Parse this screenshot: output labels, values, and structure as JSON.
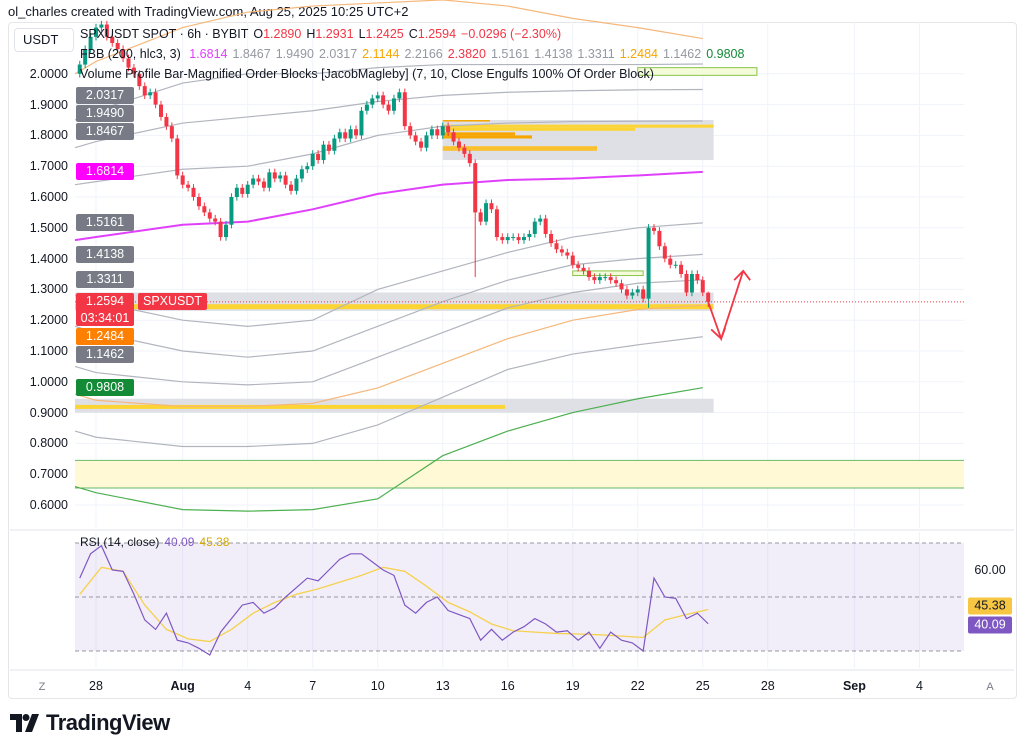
{
  "credit": "ol_charles created with TradingView.com, Aug 25, 2025 10:25 UTC+2",
  "currency_button": "USDT",
  "legend": {
    "symbol": "SPXUSDT SPOT · 6h · BYBIT",
    "o_label": "O",
    "o": "1.2890",
    "h_label": "H",
    "h": "1.2931",
    "l_label": "L",
    "l": "1.2425",
    "c_label": "C",
    "c": "1.2594",
    "change": "−0.0296 (−2.30%)",
    "fbb_name": "FBB (200, hlc3, 3)",
    "fbb_values": [
      {
        "v": "1.6814",
        "color": "#e040fb"
      },
      {
        "v": "1.8467",
        "color": "#9598a1"
      },
      {
        "v": "1.9490",
        "color": "#9598a1"
      },
      {
        "v": "2.0317",
        "color": "#9598a1"
      },
      {
        "v": "2.1144",
        "color": "#f7a600"
      },
      {
        "v": "2.2166",
        "color": "#9598a1"
      },
      {
        "v": "2.3820",
        "color": "#f23645"
      },
      {
        "v": "1.5161",
        "color": "#9598a1"
      },
      {
        "v": "1.4138",
        "color": "#9598a1"
      },
      {
        "v": "1.3311",
        "color": "#9598a1"
      },
      {
        "v": "1.2484",
        "color": "#f7a600"
      },
      {
        "v": "1.1462",
        "color": "#9598a1"
      },
      {
        "v": "0.9808",
        "color": "#138a36"
      }
    ],
    "vp_name": "Volume Profile Bar-Magnified Order Blocks [JacobMagleby] (7, 10, Close Engulfs 100% Of Order Block)"
  },
  "price_axis": {
    "ticks": [
      "2.0000",
      "1.9000",
      "1.8000",
      "1.7000",
      "1.6000",
      "1.5000",
      "1.4000",
      "1.3000",
      "1.2000",
      "1.1000",
      "1.0000",
      "0.9000",
      "0.8000",
      "0.7000",
      "0.6000"
    ],
    "badges": [
      {
        "v": "2.0317",
        "color": "#787b86"
      },
      {
        "v": "1.9490",
        "color": "#787b86"
      },
      {
        "v": "1.8467",
        "color": "#787b86"
      },
      {
        "v": "1.6814",
        "color": "#ff00ff"
      },
      {
        "v": "1.5161",
        "color": "#787b86"
      },
      {
        "v": "1.4138",
        "color": "#787b86"
      },
      {
        "v": "1.3311",
        "color": "#787b86"
      },
      {
        "v": "1.2484",
        "color": "#ff7f00"
      },
      {
        "v": "1.1462",
        "color": "#787b86"
      },
      {
        "v": "0.9808",
        "color": "#138a36"
      }
    ],
    "last_price": "1.2594",
    "countdown": "03:34:01",
    "symbol_tag": "SPXUSDT"
  },
  "time_axis": {
    "ticks": [
      {
        "label": "28",
        "date": "2025-07-28",
        "bold": false
      },
      {
        "label": "Aug",
        "date": "2025-08-01",
        "bold": true
      },
      {
        "label": "4",
        "date": "2025-08-04",
        "bold": false
      },
      {
        "label": "7",
        "date": "2025-08-07",
        "bold": false
      },
      {
        "label": "10",
        "date": "2025-08-10",
        "bold": false
      },
      {
        "label": "13",
        "date": "2025-08-13",
        "bold": false
      },
      {
        "label": "16",
        "date": "2025-08-16",
        "bold": false
      },
      {
        "label": "19",
        "date": "2025-08-19",
        "bold": false
      },
      {
        "label": "22",
        "date": "2025-08-22",
        "bold": false
      },
      {
        "label": "25",
        "date": "2025-08-25",
        "bold": false
      },
      {
        "label": "28",
        "date": "2025-08-28",
        "bold": false
      },
      {
        "label": "Sep",
        "date": "2025-09-01",
        "bold": true
      },
      {
        "label": "4",
        "date": "2025-09-04",
        "bold": false
      }
    ],
    "left_button": "Z",
    "right_button": "A"
  },
  "rsi": {
    "name": "RSI (14, close)",
    "value": "40.09",
    "ma_value": "45.38",
    "axis_tick": "60.00"
  },
  "brand": "TradingView",
  "colors": {
    "up": "#089981",
    "down": "#f23645",
    "basis": "#e040fb",
    "rsi": "#7e57c2",
    "rsi_ma": "#f5d14e",
    "arrow": "#f23645"
  },
  "chart_data": [
    {
      "type": "candlestick",
      "interval": "6h",
      "start": "2025-07-27T06:00",
      "ylim": [
        0.55,
        2.2
      ],
      "grid": true,
      "closes": [
        2.03,
        2.08,
        2.12,
        2.15,
        2.16,
        2.12,
        2.1,
        2.08,
        2.05,
        2.02,
        2.0,
        1.96,
        1.93,
        1.94,
        1.9,
        1.86,
        1.83,
        1.79,
        1.67,
        1.64,
        1.63,
        1.6,
        1.57,
        1.55,
        1.53,
        1.52,
        1.47,
        1.51,
        1.6,
        1.63,
        1.61,
        1.64,
        1.66,
        1.65,
        1.63,
        1.68,
        1.66,
        1.67,
        1.64,
        1.62,
        1.66,
        1.69,
        1.7,
        1.74,
        1.72,
        1.77,
        1.75,
        1.79,
        1.81,
        1.79,
        1.82,
        1.8,
        1.88,
        1.9,
        1.92,
        1.93,
        1.9,
        1.88,
        1.92,
        1.94,
        1.83,
        1.8,
        1.78,
        1.76,
        1.8,
        1.82,
        1.8,
        1.83,
        1.81,
        1.78,
        1.76,
        1.74,
        1.71,
        1.55,
        1.52,
        1.58,
        1.56,
        1.47,
        1.46,
        1.47,
        1.47,
        1.46,
        1.47,
        1.48,
        1.52,
        1.53,
        1.48,
        1.45,
        1.43,
        1.42,
        1.41,
        1.38,
        1.37,
        1.36,
        1.34,
        1.33,
        1.34,
        1.34,
        1.33,
        1.32,
        1.3,
        1.28,
        1.29,
        1.3,
        1.27,
        1.5,
        1.49,
        1.44,
        1.4,
        1.38,
        1.38,
        1.35,
        1.29,
        1.35,
        1.33,
        1.29,
        1.2594
      ],
      "last": {
        "open": 1.289,
        "high": 1.2931,
        "low": 1.2425,
        "close": 1.2594
      },
      "bands": {
        "dates": [
          "2025-07-27",
          "2025-07-28",
          "2025-08-01",
          "2025-08-04",
          "2025-08-07",
          "2025-08-10",
          "2025-08-13",
          "2025-08-16",
          "2025-08-19",
          "2025-08-22",
          "2025-08-25"
        ],
        "series": [
          {
            "name": "basis",
            "color": "#e040fb",
            "values": [
              1.46,
              1.47,
              1.51,
              1.52,
              1.56,
              1.61,
              1.64,
              1.655,
              1.66,
              1.67,
              1.6814
            ]
          },
          {
            "color": "#b2b5be",
            "values": [
              1.64,
              1.65,
              1.69,
              1.7,
              1.74,
              1.8,
              1.83,
              1.84,
              1.845,
              1.846,
              1.8467
            ]
          },
          {
            "color": "#b2b5be",
            "values": [
              1.76,
              1.78,
              1.84,
              1.86,
              1.88,
              1.91,
              1.93,
              1.94,
              1.945,
              1.948,
              1.949
            ]
          },
          {
            "color": "#b2b5be",
            "values": [
              1.85,
              1.88,
              1.97,
              2.0,
              2.0,
              2.02,
              2.03,
              2.03,
              2.03,
              2.03,
              2.0317
            ]
          },
          {
            "color": "#f5b77a",
            "values": [
              2.0,
              2.04,
              2.15,
              2.2,
              2.22,
              2.23,
              2.24,
              2.22,
              2.18,
              2.15,
              2.1144
            ]
          },
          {
            "color": "#b2b5be",
            "values": [
              1.28,
              1.26,
              1.2,
              1.18,
              1.2,
              1.3,
              1.36,
              1.42,
              1.47,
              1.5,
              1.5161
            ]
          },
          {
            "color": "#b2b5be",
            "values": [
              1.18,
              1.16,
              1.1,
              1.08,
              1.1,
              1.18,
              1.26,
              1.33,
              1.38,
              1.4,
              1.4138
            ]
          },
          {
            "color": "#b2b5be",
            "values": [
              1.05,
              1.03,
              1.0,
              0.99,
              1.0,
              1.08,
              1.16,
              1.24,
              1.29,
              1.32,
              1.3311
            ]
          },
          {
            "color": "#f5b77a",
            "values": [
              0.96,
              0.94,
              0.92,
              0.92,
              0.93,
              0.98,
              1.06,
              1.14,
              1.2,
              1.235,
              1.2484
            ]
          },
          {
            "color": "#b2b5be",
            "values": [
              0.84,
              0.82,
              0.79,
              0.79,
              0.8,
              0.86,
              0.95,
              1.04,
              1.09,
              1.12,
              1.1462
            ]
          },
          {
            "color": "#4caf50",
            "values": [
              0.66,
              0.64,
              0.585,
              0.58,
              0.585,
              0.62,
              0.76,
              0.84,
              0.9,
              0.945,
              0.9808
            ]
          }
        ]
      },
      "zones": [
        {
          "kind": "order-block",
          "low": 1.72,
          "high": 1.85,
          "from": "2025-08-13",
          "to": "2025-08-25T12:00"
        },
        {
          "kind": "order-block",
          "low": 1.23,
          "high": 1.29,
          "from": "2025-07-27",
          "to": "2025-08-25T12:00"
        },
        {
          "kind": "order-block",
          "low": 0.9,
          "high": 0.945,
          "from": "2025-07-27",
          "to": "2025-08-25T12:00"
        },
        {
          "kind": "highlight",
          "low": 0.655,
          "high": 0.745,
          "from": "2025-07-27",
          "to": "2025-09-06"
        },
        {
          "kind": "box",
          "low": 1.995,
          "high": 2.02,
          "from": "2025-08-22",
          "to": "2025-08-27T12:00"
        },
        {
          "kind": "box",
          "low": 1.345,
          "high": 1.36,
          "from": "2025-08-19",
          "to": "2025-08-22T06:00"
        }
      ]
    },
    {
      "type": "line",
      "title": "RSI (14, close)",
      "interval": "6h",
      "start": "2025-07-27T06:00",
      "levels": [
        70,
        50,
        30
      ],
      "rsi_step": 2,
      "rsi": [
        57,
        66,
        69,
        60,
        59.5,
        51,
        41.5,
        38,
        44,
        34,
        33,
        31,
        28.5,
        37,
        42,
        47,
        48,
        44,
        46,
        50,
        53.5,
        57,
        56,
        60,
        64,
        66,
        66,
        63,
        60,
        58,
        47,
        44,
        48,
        50,
        45,
        43.5,
        42,
        34,
        38,
        34,
        37,
        39,
        42,
        40,
        37,
        37.5,
        34,
        37,
        31,
        37,
        34,
        33,
        30,
        57,
        50,
        49.5,
        42,
        44,
        40.09
      ],
      "ma_step": 4,
      "ma": [
        51,
        61,
        59.5,
        47,
        38,
        34.5,
        33.5,
        38,
        44,
        48,
        51,
        53,
        55.5,
        58,
        61,
        59.5,
        54,
        48,
        44.5,
        40,
        37.5,
        37,
        36.5,
        36.3,
        36,
        35.5,
        35,
        41.5,
        43.5,
        45.38
      ]
    }
  ]
}
